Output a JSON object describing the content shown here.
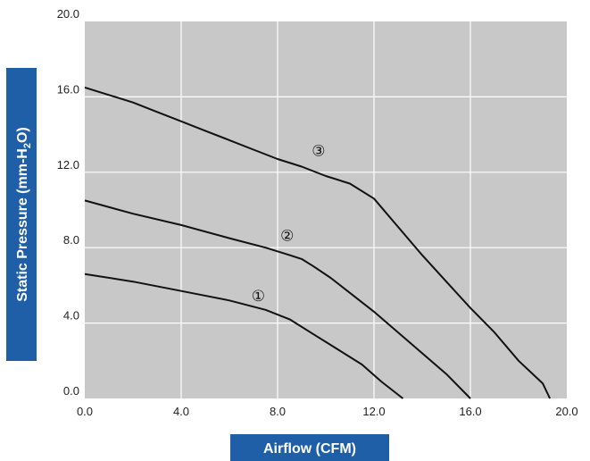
{
  "colors": {
    "plot_background": "#c8c8c8",
    "grid": "#ffffff",
    "series_line": "#111111",
    "axis_banner": "#1f5fa8",
    "axis_title_text": "#ffffff"
  },
  "chart_data": {
    "type": "line",
    "title": "",
    "xlabel": "Airflow (CFM)",
    "ylabel_parts": [
      "Static Pressure (mm-H",
      "2",
      "O)"
    ],
    "xlim": [
      0,
      20
    ],
    "ylim": [
      0,
      20
    ],
    "grid": true,
    "x_ticks": [
      "0.0",
      "4.0",
      "8.0",
      "12.0",
      "16.0",
      "20.0"
    ],
    "y_ticks": [
      "0.0",
      "4.0",
      "8.0",
      "12.0",
      "16.0",
      "20.0"
    ],
    "series": [
      {
        "name": "①",
        "points": [
          [
            0,
            6.6
          ],
          [
            2,
            6.2
          ],
          [
            4,
            5.7
          ],
          [
            6,
            5.2
          ],
          [
            7.5,
            4.7
          ],
          [
            8.5,
            4.2
          ],
          [
            9.5,
            3.4
          ],
          [
            10.5,
            2.6
          ],
          [
            11.5,
            1.8
          ],
          [
            12.3,
            0.9
          ],
          [
            13.2,
            0.0
          ]
        ],
        "label_at": [
          7.2,
          5.4
        ]
      },
      {
        "name": "②",
        "points": [
          [
            0,
            10.5
          ],
          [
            2,
            9.8
          ],
          [
            4,
            9.2
          ],
          [
            6,
            8.5
          ],
          [
            7.5,
            8.0
          ],
          [
            8.5,
            7.6
          ],
          [
            9,
            7.4
          ],
          [
            9.5,
            7.0
          ],
          [
            10.2,
            6.4
          ],
          [
            11,
            5.6
          ],
          [
            12,
            4.6
          ],
          [
            13,
            3.5
          ],
          [
            14,
            2.4
          ],
          [
            15,
            1.3
          ],
          [
            16,
            0.0
          ]
        ],
        "label_at": [
          8.4,
          8.6
        ]
      },
      {
        "name": "③",
        "points": [
          [
            0,
            16.5
          ],
          [
            1,
            16.1
          ],
          [
            2,
            15.7
          ],
          [
            3,
            15.2
          ],
          [
            4,
            14.7
          ],
          [
            5,
            14.2
          ],
          [
            6,
            13.7
          ],
          [
            7,
            13.2
          ],
          [
            8,
            12.7
          ],
          [
            9,
            12.3
          ],
          [
            10,
            11.8
          ],
          [
            11,
            11.4
          ],
          [
            12,
            10.6
          ],
          [
            13,
            9.1
          ],
          [
            14,
            7.6
          ],
          [
            15,
            6.2
          ],
          [
            16,
            4.8
          ],
          [
            17,
            3.5
          ],
          [
            18,
            2.0
          ],
          [
            19,
            0.8
          ],
          [
            19.3,
            0.0
          ]
        ],
        "label_at": [
          9.7,
          13.1
        ]
      }
    ]
  }
}
